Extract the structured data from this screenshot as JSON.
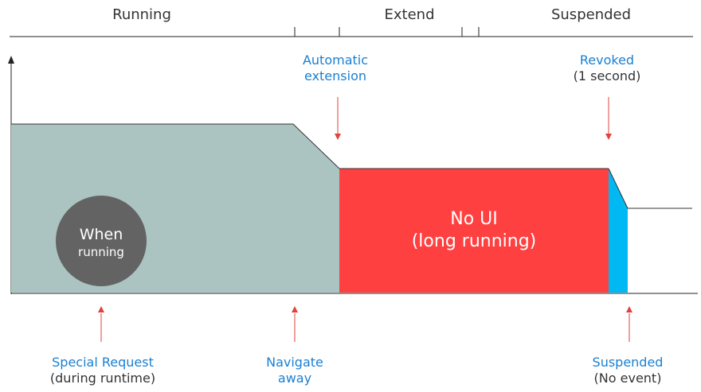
{
  "phases": {
    "running": "Running",
    "extend": "Extend",
    "suspended": "Suspended"
  },
  "annotations": {
    "automatic_extension": {
      "line1": "Automatic",
      "line2": "extension"
    },
    "revoked": {
      "line1": "Revoked",
      "line2": "(1 second)"
    },
    "special_request": {
      "line1": "Special Request",
      "line2": "(during runtime)"
    },
    "navigate_away": {
      "line1": "Navigate",
      "line2": "away"
    },
    "suspended_event": {
      "line1": "Suspended",
      "line2": "(No event)"
    }
  },
  "regions": {
    "when_running": {
      "line1": "When",
      "line2": "running"
    },
    "no_ui": {
      "line1": "No UI",
      "line2": "(long running)"
    }
  },
  "colors": {
    "running_fill": "#abc4c1",
    "no_ui_fill": "#ff4040",
    "revoke_fill": "#00b9f2",
    "circle_fill": "#636363",
    "arrow_red": "#e3413c",
    "label_blue": "#1a7fd1",
    "axis": "#222222"
  }
}
